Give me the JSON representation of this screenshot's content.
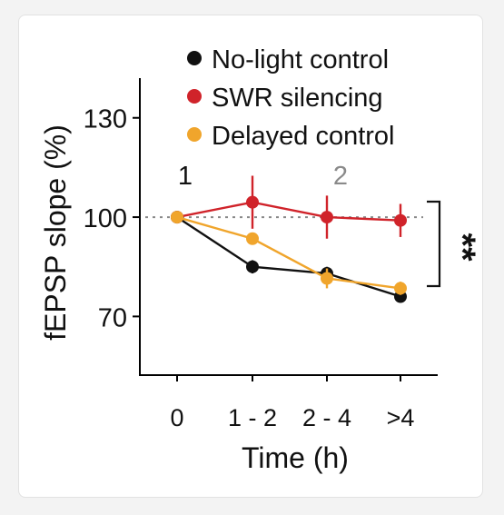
{
  "chart_data": {
    "type": "line",
    "categories": [
      "0",
      "1 - 2",
      "2 - 4",
      ">4"
    ],
    "xlabel": "Time (h)",
    "ylabel": "fEPSP slope (%)",
    "ylim": [
      52,
      142
    ],
    "yticks": [
      70,
      100,
      130
    ],
    "baseline": 100,
    "series": [
      {
        "name": "No-light control",
        "color": "#111111",
        "values": [
          100,
          85,
          83,
          76
        ],
        "errors": [
          0,
          2,
          2,
          1.5
        ]
      },
      {
        "name": "SWR silencing",
        "color": "#d0232a",
        "values": [
          100,
          104.5,
          100,
          99
        ],
        "errors": [
          0,
          8,
          6.5,
          5
        ]
      },
      {
        "name": "Delayed control",
        "color": "#f0a52c",
        "values": [
          100,
          93.5,
          81.5,
          78.5
        ],
        "errors": [
          0,
          1.5,
          3,
          2
        ]
      }
    ],
    "annotations": [
      {
        "text": "1",
        "category": "0",
        "color": "#111111"
      },
      {
        "text": "2",
        "category": "2 - 4",
        "color": "#8a8a8a"
      }
    ],
    "significance": "**",
    "legend_position": "top"
  }
}
